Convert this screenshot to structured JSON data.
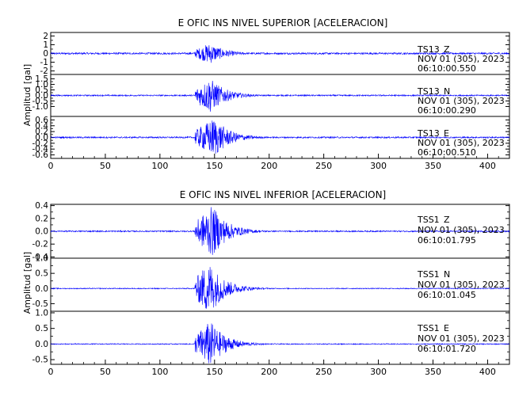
{
  "chart_data": [
    {
      "type": "line",
      "title": "E OFIC INS NIVEL SUPERIOR [ACELERACION]",
      "ylabel": "Amplitud [gal]",
      "xlabel": "",
      "xlim": [
        0,
        420
      ],
      "x_ticks": [
        0,
        50,
        100,
        150,
        200,
        250,
        300,
        350,
        400
      ],
      "grid": false,
      "line_color": "#0000ff",
      "traces": [
        {
          "station": "TS13",
          "component": "Z",
          "date": "NOV 01 (305), 2023",
          "time": "06:10:00.550",
          "ylim": [
            -2.4,
            2.4
          ],
          "y_ticks": [
            -2,
            -1,
            0,
            1,
            2
          ],
          "y_tick_labels": [
            "-2",
            "-1",
            "0",
            "1",
            "2"
          ],
          "onset_s": 132,
          "peak_s": 146,
          "peak_amplitude": 1.2,
          "noise_amplitude": 0.1
        },
        {
          "station": "TS13",
          "component": "N",
          "date": "NOV 01 (305), 2023",
          "time": "06:10:00.290",
          "ylim": [
            -1.9,
            1.9
          ],
          "y_ticks": [
            -1.0,
            -0.5,
            0.0,
            0.5,
            1.0,
            1.5
          ],
          "y_tick_labels": [
            "-1.0",
            "-0.5",
            "0.0",
            "0.5",
            "1.0",
            "1.5"
          ],
          "onset_s": 132,
          "peak_s": 146,
          "peak_amplitude": 1.6,
          "noise_amplitude": 0.06
        },
        {
          "station": "TS13",
          "component": "E",
          "date": "NOV 01 (305), 2023",
          "time": "06:10:00.510",
          "ylim": [
            -0.72,
            0.72
          ],
          "y_ticks": [
            -0.6,
            -0.4,
            -0.2,
            0.0,
            0.2,
            0.4,
            0.6
          ],
          "y_tick_labels": [
            "-0.6",
            "-0.4",
            "-0.2",
            "0.0",
            "0.2",
            "0.4",
            "0.6"
          ],
          "onset_s": 132,
          "peak_s": 150,
          "peak_amplitude": 0.68,
          "noise_amplitude": 0.025
        }
      ]
    },
    {
      "type": "line",
      "title": "E OFIC INS NIVEL INFERIOR [ACELERACION]",
      "ylabel": "Amplitud [gal]",
      "xlabel": "",
      "xlim": [
        0,
        420
      ],
      "x_ticks": [
        0,
        50,
        100,
        150,
        200,
        250,
        300,
        350,
        400
      ],
      "grid": false,
      "line_color": "#0000ff",
      "traces": [
        {
          "station": "TSS1",
          "component": "Z",
          "date": "NOV 01 (305), 2023",
          "time": "06:10:01.795",
          "ylim": [
            -0.42,
            0.42
          ],
          "y_ticks": [
            -0.4,
            -0.2,
            0.0,
            0.2,
            0.4
          ],
          "y_tick_labels": [
            "-0.4",
            "-0.2",
            "0.0",
            "0.2",
            "0.4"
          ],
          "onset_s": 132,
          "peak_s": 148,
          "peak_amplitude": 0.4,
          "noise_amplitude": 0.01
        },
        {
          "station": "TSS1",
          "component": "N",
          "date": "NOV 01 (305), 2023",
          "time": "06:10:01.045",
          "ylim": [
            -0.75,
            1.0
          ],
          "y_ticks": [
            -0.5,
            0.0,
            0.5,
            1.0
          ],
          "y_tick_labels": [
            "-0.5",
            "0.0",
            "0.5",
            "1.0"
          ],
          "onset_s": 132,
          "peak_s": 145,
          "peak_amplitude": 0.9,
          "noise_amplitude": 0.015
        },
        {
          "station": "TSS1",
          "component": "E",
          "date": "NOV 01 (305), 2023",
          "time": "06:10:01.720",
          "ylim": [
            -0.65,
            1.05
          ],
          "y_ticks": [
            -0.5,
            0.0,
            0.5,
            1.0
          ],
          "y_tick_labels": [
            "-0.5",
            "0.0",
            "0.5",
            "1.0"
          ],
          "onset_s": 132,
          "peak_s": 146,
          "peak_amplitude": 0.75,
          "noise_amplitude": 0.015
        }
      ]
    }
  ]
}
